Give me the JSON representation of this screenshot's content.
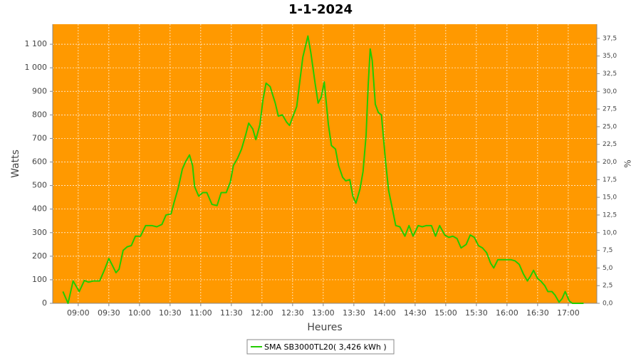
{
  "chart_data": {
    "type": "line",
    "title": "1-1-2024",
    "x_label": "Heures",
    "y_label": "Watts",
    "y2_label": "%",
    "x": [
      525,
      530,
      535,
      541,
      546,
      550,
      555,
      561,
      566,
      570,
      573,
      577,
      580,
      584,
      588,
      592,
      596,
      601,
      606,
      612,
      617,
      622,
      626,
      631,
      634,
      638,
      642,
      645,
      649,
      652,
      654,
      658,
      662,
      666,
      671,
      676,
      680,
      685,
      689,
      692,
      696,
      700,
      704,
      707,
      711,
      714,
      718,
      721,
      724,
      728,
      733,
      736,
      740,
      744,
      747,
      750,
      754,
      757,
      760,
      765,
      768,
      772,
      775,
      778,
      781,
      785,
      788,
      792,
      795,
      799,
      802,
      806,
      809,
      812,
      816,
      819,
      822,
      824,
      826,
      828,
      831,
      834,
      837,
      841,
      844,
      848,
      851,
      855,
      860,
      864,
      868,
      873,
      877,
      881,
      886,
      890,
      894,
      899,
      903,
      907,
      911,
      915,
      920,
      924,
      928,
      932,
      936,
      940,
      944,
      947,
      951,
      955,
      959,
      964,
      968,
      972,
      976,
      980,
      983,
      986,
      990,
      993,
      997,
      1000,
      1004,
      1007,
      1011,
      1014,
      1017,
      1021,
      1024,
      1035
    ],
    "series": [
      {
        "name": "SMA SB3000TL20( 3,426 kWh )",
        "color": "#22cc00",
        "values": [
          50,
          0,
          95,
          50,
          97,
          90,
          95,
          95,
          145,
          190,
          165,
          130,
          145,
          225,
          240,
          245,
          285,
          285,
          330,
          330,
          325,
          335,
          375,
          380,
          430,
          490,
          570,
          600,
          630,
          585,
          495,
          455,
          470,
          470,
          420,
          415,
          470,
          470,
          515,
          585,
          615,
          655,
          715,
          765,
          740,
          695,
          760,
          865,
          935,
          920,
          850,
          795,
          800,
          770,
          755,
          790,
          835,
          940,
          1045,
          1135,
          1060,
          935,
          850,
          875,
          940,
          760,
          670,
          655,
          585,
          535,
          520,
          525,
          455,
          425,
          485,
          560,
          715,
          925,
          1080,
          1030,
          845,
          810,
          800,
          605,
          480,
          395,
          330,
          325,
          285,
          330,
          285,
          330,
          325,
          330,
          330,
          285,
          330,
          290,
          280,
          285,
          275,
          235,
          250,
          290,
          280,
          245,
          235,
          215,
          170,
          150,
          185,
          185,
          185,
          185,
          180,
          165,
          125,
          95,
          115,
          140,
          105,
          95,
          75,
          50,
          50,
          35,
          5,
          20,
          50,
          10,
          0,
          0
        ]
      }
    ],
    "xlim": [
      515,
      1048
    ],
    "xticks": [
      {
        "value": 540,
        "label": "09:00"
      },
      {
        "value": 570,
        "label": "09:30"
      },
      {
        "value": 600,
        "label": "10:00"
      },
      {
        "value": 630,
        "label": "10:30"
      },
      {
        "value": 660,
        "label": "11:00"
      },
      {
        "value": 690,
        "label": "11:30"
      },
      {
        "value": 720,
        "label": "12:00"
      },
      {
        "value": 750,
        "label": "12:30"
      },
      {
        "value": 780,
        "label": "13:00"
      },
      {
        "value": 810,
        "label": "13:30"
      },
      {
        "value": 840,
        "label": "14:00"
      },
      {
        "value": 870,
        "label": "14:30"
      },
      {
        "value": 900,
        "label": "15:00"
      },
      {
        "value": 930,
        "label": "15:30"
      },
      {
        "value": 960,
        "label": "16:00"
      },
      {
        "value": 990,
        "label": "16:30"
      },
      {
        "value": 1020,
        "label": "17:00"
      }
    ],
    "ylim": [
      0,
      1185
    ],
    "yticks": [
      0,
      100,
      200,
      300,
      400,
      500,
      600,
      700,
      800,
      900,
      {
        "value": 1000,
        "label": "1 000"
      },
      {
        "value": 1100,
        "label": "1 100"
      }
    ],
    "y2lim": [
      0,
      39.5
    ],
    "y2ticks": [
      {
        "value": 0,
        "label": "0,0"
      },
      {
        "value": 2.5,
        "label": "2,5"
      },
      {
        "value": 5,
        "label": "5,0"
      },
      {
        "value": 7.5,
        "label": "7,5"
      },
      {
        "value": 10,
        "label": "10,0"
      },
      {
        "value": 12.5,
        "label": "12,5"
      },
      {
        "value": 15,
        "label": "15,0"
      },
      {
        "value": 17.5,
        "label": "17,5"
      },
      {
        "value": 20,
        "label": "20,0"
      },
      {
        "value": 22.5,
        "label": "22,5"
      },
      {
        "value": 25,
        "label": "25,0"
      },
      {
        "value": 27.5,
        "label": "27,5"
      },
      {
        "value": 30,
        "label": "30,0"
      },
      {
        "value": 32.5,
        "label": "32,5"
      },
      {
        "value": 35,
        "label": "35,0"
      },
      {
        "value": 37.5,
        "label": "37,5"
      }
    ],
    "grid": true,
    "background": "#ff9900"
  }
}
